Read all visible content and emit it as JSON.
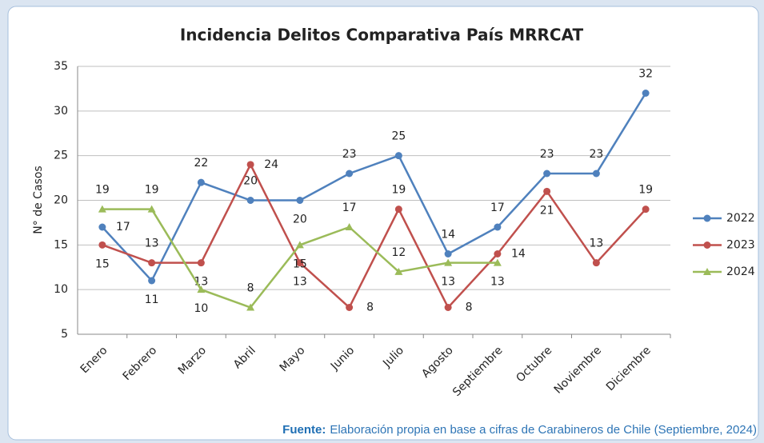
{
  "chart_data": {
    "type": "line",
    "title": "Incidencia Delitos Comparativa País MRRCAT",
    "ylabel": "N° de Casos",
    "categories": [
      "Enero",
      "Febrero",
      "Marzo",
      "Abril",
      "Mayo",
      "Junio",
      "Julio",
      "Agosto",
      "Septiembre",
      "Octubre",
      "Noviembre",
      "Diciembre"
    ],
    "series": [
      {
        "name": "2022",
        "color": "#4f81bd",
        "marker": "circle",
        "values": [
          17,
          11,
          22,
          20,
          20,
          23,
          25,
          14,
          17,
          23,
          23,
          32
        ]
      },
      {
        "name": "2023",
        "color": "#c0504d",
        "marker": "circle",
        "values": [
          15,
          13,
          13,
          24,
          13,
          8,
          19,
          8,
          14,
          21,
          13,
          19
        ]
      },
      {
        "name": "2024",
        "color": "#9bbb59",
        "marker": "triangle",
        "values": [
          19,
          19,
          10,
          8,
          15,
          17,
          12,
          13,
          13,
          null,
          null,
          null
        ]
      }
    ],
    "ylim": [
      5,
      35
    ],
    "yticks": [
      5,
      10,
      15,
      20,
      25,
      30,
      35
    ],
    "grid": true,
    "legend": "right",
    "source_label": "Fuente:",
    "source_text": "Elaboración propia en base a cifras de Carabineros de Chile (Septiembre, 2024)"
  }
}
